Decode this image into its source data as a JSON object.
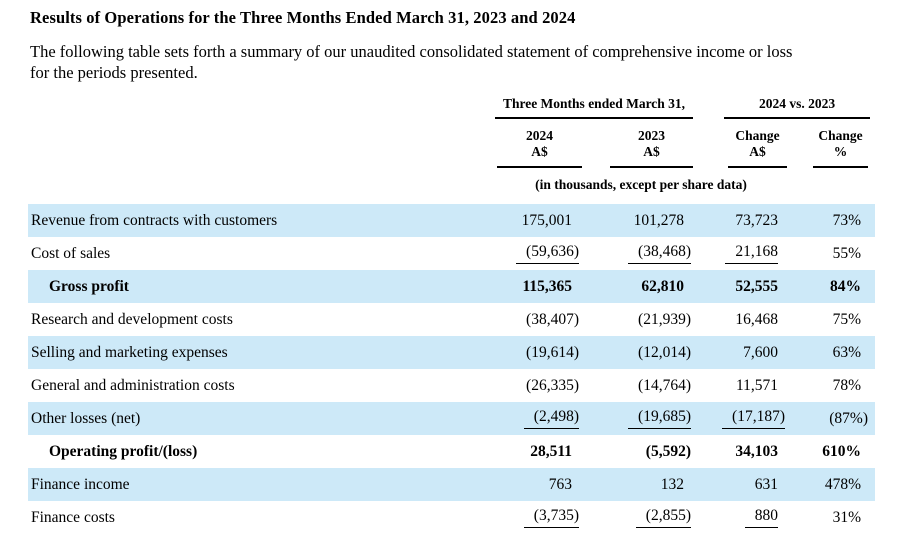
{
  "page": {
    "title": "Results of Operations for the Three Months Ended March 31, 2023 and 2024",
    "intro": "The following table sets forth a summary of our unaudited consolidated statement of comprehensive income or loss\nfor the periods presented."
  },
  "table": {
    "group_headers": {
      "period": "Three Months ended March 31,",
      "change": "2024 vs. 2023"
    },
    "columns": [
      {
        "line1": "2024",
        "line2": "A$"
      },
      {
        "line1": "2023",
        "line2": "A$"
      },
      {
        "line1": "Change",
        "line2": "A$"
      },
      {
        "line1": "Change",
        "line2": "%"
      }
    ],
    "units_note": "(in thousands, except per share data)",
    "rows": [
      {
        "label": "Revenue from contracts with customers",
        "values": [
          "175,001",
          "101,278",
          "73,723",
          "73%"
        ],
        "bold": false,
        "indent": false,
        "rule": false
      },
      {
        "label": "Cost of sales",
        "values": [
          "(59,636)",
          "(38,468)",
          "21,168",
          "55%"
        ],
        "bold": false,
        "indent": false,
        "rule": true
      },
      {
        "label": "Gross profit",
        "values": [
          "115,365",
          "62,810",
          "52,555",
          "84%"
        ],
        "bold": true,
        "indent": true,
        "rule": false
      },
      {
        "label": "Research and development costs",
        "values": [
          "(38,407)",
          "(21,939)",
          "16,468",
          "75%"
        ],
        "bold": false,
        "indent": false,
        "rule": false
      },
      {
        "label": "Selling and marketing expenses",
        "values": [
          "(19,614)",
          "(12,014)",
          "7,600",
          "63%"
        ],
        "bold": false,
        "indent": false,
        "rule": false
      },
      {
        "label": "General and administration costs",
        "values": [
          "(26,335)",
          "(14,764)",
          "11,571",
          "78%"
        ],
        "bold": false,
        "indent": false,
        "rule": false
      },
      {
        "label": "Other losses (net)",
        "values": [
          "(2,498)",
          "(19,685)",
          "(17,187)",
          "(87%)"
        ],
        "bold": false,
        "indent": false,
        "rule": true
      },
      {
        "label": "Operating profit/(loss)",
        "values": [
          "28,511",
          "(5,592)",
          "34,103",
          "610%"
        ],
        "bold": true,
        "indent": true,
        "rule": false
      },
      {
        "label": "Finance income",
        "values": [
          "763",
          "132",
          "631",
          "478%"
        ],
        "bold": false,
        "indent": false,
        "rule": false
      },
      {
        "label": "Finance costs",
        "values": [
          "(3,735)",
          "(2,855)",
          "880",
          "31%"
        ],
        "bold": false,
        "indent": false,
        "rule": true
      }
    ],
    "colors": {
      "row_highlight": "#cde9f8",
      "text": "#000000"
    }
  }
}
